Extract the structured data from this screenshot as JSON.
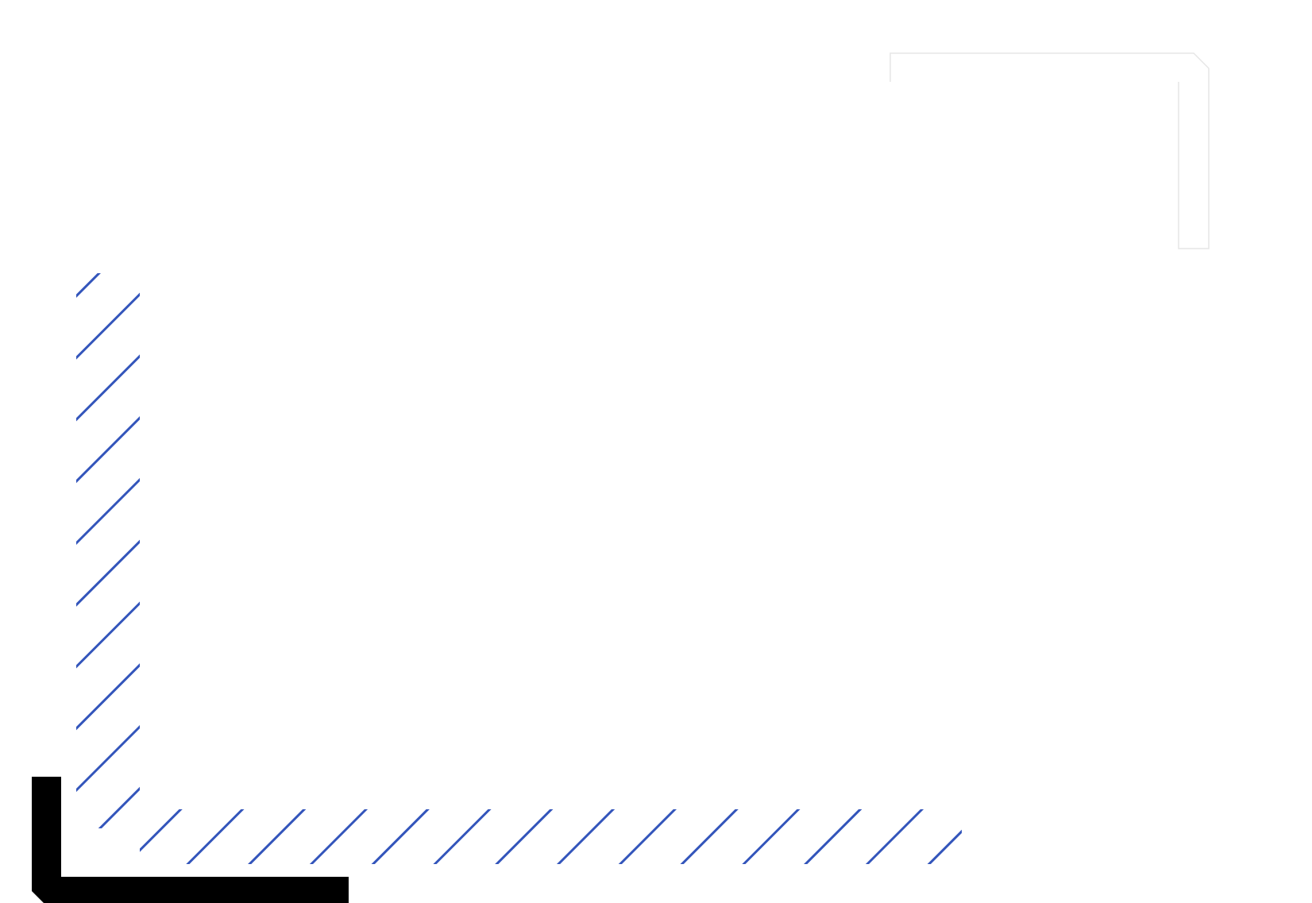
{
  "colors": {
    "background": "#ffffff",
    "hatch": "#3355bb",
    "black_bracket": "#000000",
    "white_bracket_outline": "#e6e6e6"
  },
  "decorations": [
    {
      "name": "top-right-corner-bracket",
      "style": "white-outlined"
    },
    {
      "name": "hatched-l-shape",
      "style": "diagonal-hatch"
    },
    {
      "name": "bottom-left-corner-bracket",
      "style": "solid-black"
    }
  ]
}
